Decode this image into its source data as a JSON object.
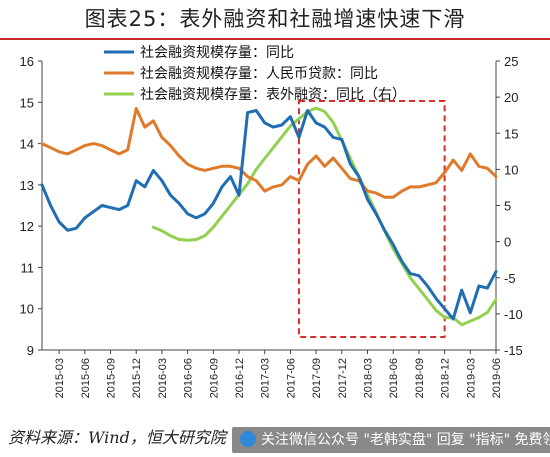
{
  "title": "图表25：表外融资和社融增速快速下滑",
  "source": "资料来源：Wind，恒大研究院",
  "watermark": "关注微信公众号 \"老韩实盘\" 回复 \"指标\" 免费领",
  "colors": {
    "series1": "#1f6db3",
    "series2": "#e07a2b",
    "series3": "#92d050",
    "highlight": "#d62d2d",
    "title_rule": "#c62828"
  },
  "chart_data": {
    "type": "line",
    "x_ticks": [
      "2015-03",
      "2015-06",
      "2015-09",
      "2015-12",
      "2016-03",
      "2016-06",
      "2016-09",
      "2016-12",
      "2017-03",
      "2017-06",
      "2017-09",
      "2017-12",
      "2018-03",
      "2018-06",
      "2018-09",
      "2018-12",
      "2019-03",
      "2019-06"
    ],
    "x_range": [
      "2015-01",
      "2019-06"
    ],
    "ylim_left": [
      9,
      16
    ],
    "yticks_left": [
      9,
      10,
      11,
      12,
      13,
      14,
      15,
      16
    ],
    "ylim_right": [
      -15,
      25
    ],
    "yticks_right": [
      -15,
      -10,
      -5,
      0,
      5,
      10,
      15,
      20,
      25
    ],
    "highlight_range": [
      "2017-07",
      "2018-12"
    ],
    "legend_position": "top",
    "series": [
      {
        "name": "社会融资规模存量：同比",
        "axis": "left",
        "points": [
          [
            "2015-01",
            13.0
          ],
          [
            "2015-02",
            12.5
          ],
          [
            "2015-03",
            12.1
          ],
          [
            "2015-04",
            11.9
          ],
          [
            "2015-05",
            11.95
          ],
          [
            "2015-06",
            12.2
          ],
          [
            "2015-07",
            12.35
          ],
          [
            "2015-08",
            12.5
          ],
          [
            "2015-09",
            12.45
          ],
          [
            "2015-10",
            12.4
          ],
          [
            "2015-11",
            12.5
          ],
          [
            "2015-12",
            13.1
          ],
          [
            "2016-01",
            12.95
          ],
          [
            "2016-02",
            13.35
          ],
          [
            "2016-03",
            13.1
          ],
          [
            "2016-04",
            12.75
          ],
          [
            "2016-05",
            12.55
          ],
          [
            "2016-06",
            12.3
          ],
          [
            "2016-07",
            12.2
          ],
          [
            "2016-08",
            12.3
          ],
          [
            "2016-09",
            12.55
          ],
          [
            "2016-10",
            12.95
          ],
          [
            "2016-11",
            13.2
          ],
          [
            "2016-12",
            12.75
          ],
          [
            "2017-01",
            14.75
          ],
          [
            "2017-02",
            14.8
          ],
          [
            "2017-03",
            14.5
          ],
          [
            "2017-04",
            14.4
          ],
          [
            "2017-05",
            14.45
          ],
          [
            "2017-06",
            14.65
          ],
          [
            "2017-07",
            14.15
          ],
          [
            "2017-08",
            14.8
          ],
          [
            "2017-09",
            14.5
          ],
          [
            "2017-10",
            14.4
          ],
          [
            "2017-11",
            14.15
          ],
          [
            "2017-12",
            14.1
          ],
          [
            "2018-01",
            13.5
          ],
          [
            "2018-02",
            13.2
          ],
          [
            "2018-03",
            12.65
          ],
          [
            "2018-04",
            12.3
          ],
          [
            "2018-05",
            11.9
          ],
          [
            "2018-06",
            11.55
          ],
          [
            "2018-07",
            11.15
          ],
          [
            "2018-08",
            10.85
          ],
          [
            "2018-09",
            10.8
          ],
          [
            "2018-10",
            10.55
          ],
          [
            "2018-11",
            10.25
          ],
          [
            "2018-12",
            10.0
          ],
          [
            "2019-01",
            9.75
          ],
          [
            "2019-02",
            10.45
          ],
          [
            "2019-03",
            9.9
          ],
          [
            "2019-04",
            10.55
          ],
          [
            "2019-05",
            10.5
          ],
          [
            "2019-06",
            10.9
          ]
        ]
      },
      {
        "name": "社会融资规模存量：人民币贷款：同比",
        "axis": "left",
        "points": [
          [
            "2015-01",
            14.0
          ],
          [
            "2015-02",
            13.9
          ],
          [
            "2015-03",
            13.8
          ],
          [
            "2015-04",
            13.75
          ],
          [
            "2015-05",
            13.85
          ],
          [
            "2015-06",
            13.95
          ],
          [
            "2015-07",
            14.0
          ],
          [
            "2015-08",
            13.95
          ],
          [
            "2015-09",
            13.85
          ],
          [
            "2015-10",
            13.75
          ],
          [
            "2015-11",
            13.85
          ],
          [
            "2015-12",
            14.85
          ],
          [
            "2016-01",
            14.4
          ],
          [
            "2016-02",
            14.55
          ],
          [
            "2016-03",
            14.15
          ],
          [
            "2016-04",
            13.95
          ],
          [
            "2016-05",
            13.7
          ],
          [
            "2016-06",
            13.5
          ],
          [
            "2016-07",
            13.4
          ],
          [
            "2016-08",
            13.35
          ],
          [
            "2016-09",
            13.4
          ],
          [
            "2016-10",
            13.45
          ],
          [
            "2016-11",
            13.45
          ],
          [
            "2016-12",
            13.4
          ],
          [
            "2017-01",
            13.2
          ],
          [
            "2017-02",
            13.1
          ],
          [
            "2017-03",
            12.85
          ],
          [
            "2017-04",
            12.95
          ],
          [
            "2017-05",
            13.0
          ],
          [
            "2017-06",
            13.2
          ],
          [
            "2017-07",
            13.1
          ],
          [
            "2017-08",
            13.5
          ],
          [
            "2017-09",
            13.7
          ],
          [
            "2017-10",
            13.45
          ],
          [
            "2017-11",
            13.65
          ],
          [
            "2017-12",
            13.4
          ],
          [
            "2018-01",
            13.15
          ],
          [
            "2018-02",
            13.1
          ],
          [
            "2018-03",
            12.85
          ],
          [
            "2018-04",
            12.8
          ],
          [
            "2018-05",
            12.7
          ],
          [
            "2018-06",
            12.7
          ],
          [
            "2018-07",
            12.85
          ],
          [
            "2018-08",
            12.95
          ],
          [
            "2018-09",
            12.95
          ],
          [
            "2018-10",
            13.0
          ],
          [
            "2018-11",
            13.05
          ],
          [
            "2018-12",
            13.3
          ],
          [
            "2019-01",
            13.6
          ],
          [
            "2019-02",
            13.35
          ],
          [
            "2019-03",
            13.75
          ],
          [
            "2019-04",
            13.45
          ],
          [
            "2019-05",
            13.4
          ],
          [
            "2019-06",
            13.2
          ]
        ]
      },
      {
        "name": "社会融资规模存量：表外融资：同比（右）",
        "axis": "right",
        "points": [
          [
            "2016-02",
            2.0
          ],
          [
            "2016-03",
            1.5
          ],
          [
            "2016-04",
            0.8
          ],
          [
            "2016-05",
            0.3
          ],
          [
            "2016-06",
            0.2
          ],
          [
            "2016-07",
            0.3
          ],
          [
            "2016-08",
            0.8
          ],
          [
            "2016-09",
            2.0
          ],
          [
            "2016-10",
            3.5
          ],
          [
            "2016-11",
            5.0
          ],
          [
            "2016-12",
            6.5
          ],
          [
            "2017-01",
            8.0
          ],
          [
            "2017-02",
            10.0
          ],
          [
            "2017-03",
            11.5
          ],
          [
            "2017-04",
            13.0
          ],
          [
            "2017-05",
            14.5
          ],
          [
            "2017-06",
            16.0
          ],
          [
            "2017-07",
            17.0
          ],
          [
            "2017-08",
            18.0
          ],
          [
            "2017-09",
            18.5
          ],
          [
            "2017-10",
            18.0
          ],
          [
            "2017-11",
            16.5
          ],
          [
            "2017-12",
            14.0
          ],
          [
            "2018-01",
            11.5
          ],
          [
            "2018-02",
            9.0
          ],
          [
            "2018-03",
            6.5
          ],
          [
            "2018-04",
            4.0
          ],
          [
            "2018-05",
            1.5
          ],
          [
            "2018-06",
            -1.0
          ],
          [
            "2018-07",
            -3.0
          ],
          [
            "2018-08",
            -5.0
          ],
          [
            "2018-09",
            -6.5
          ],
          [
            "2018-10",
            -8.0
          ],
          [
            "2018-11",
            -9.5
          ],
          [
            "2018-12",
            -10.5
          ],
          [
            "2019-01",
            -10.5
          ],
          [
            "2019-02",
            -11.5
          ],
          [
            "2019-03",
            -11.0
          ],
          [
            "2019-04",
            -10.5
          ],
          [
            "2019-05",
            -9.8
          ],
          [
            "2019-06",
            -8.0
          ]
        ]
      }
    ]
  }
}
